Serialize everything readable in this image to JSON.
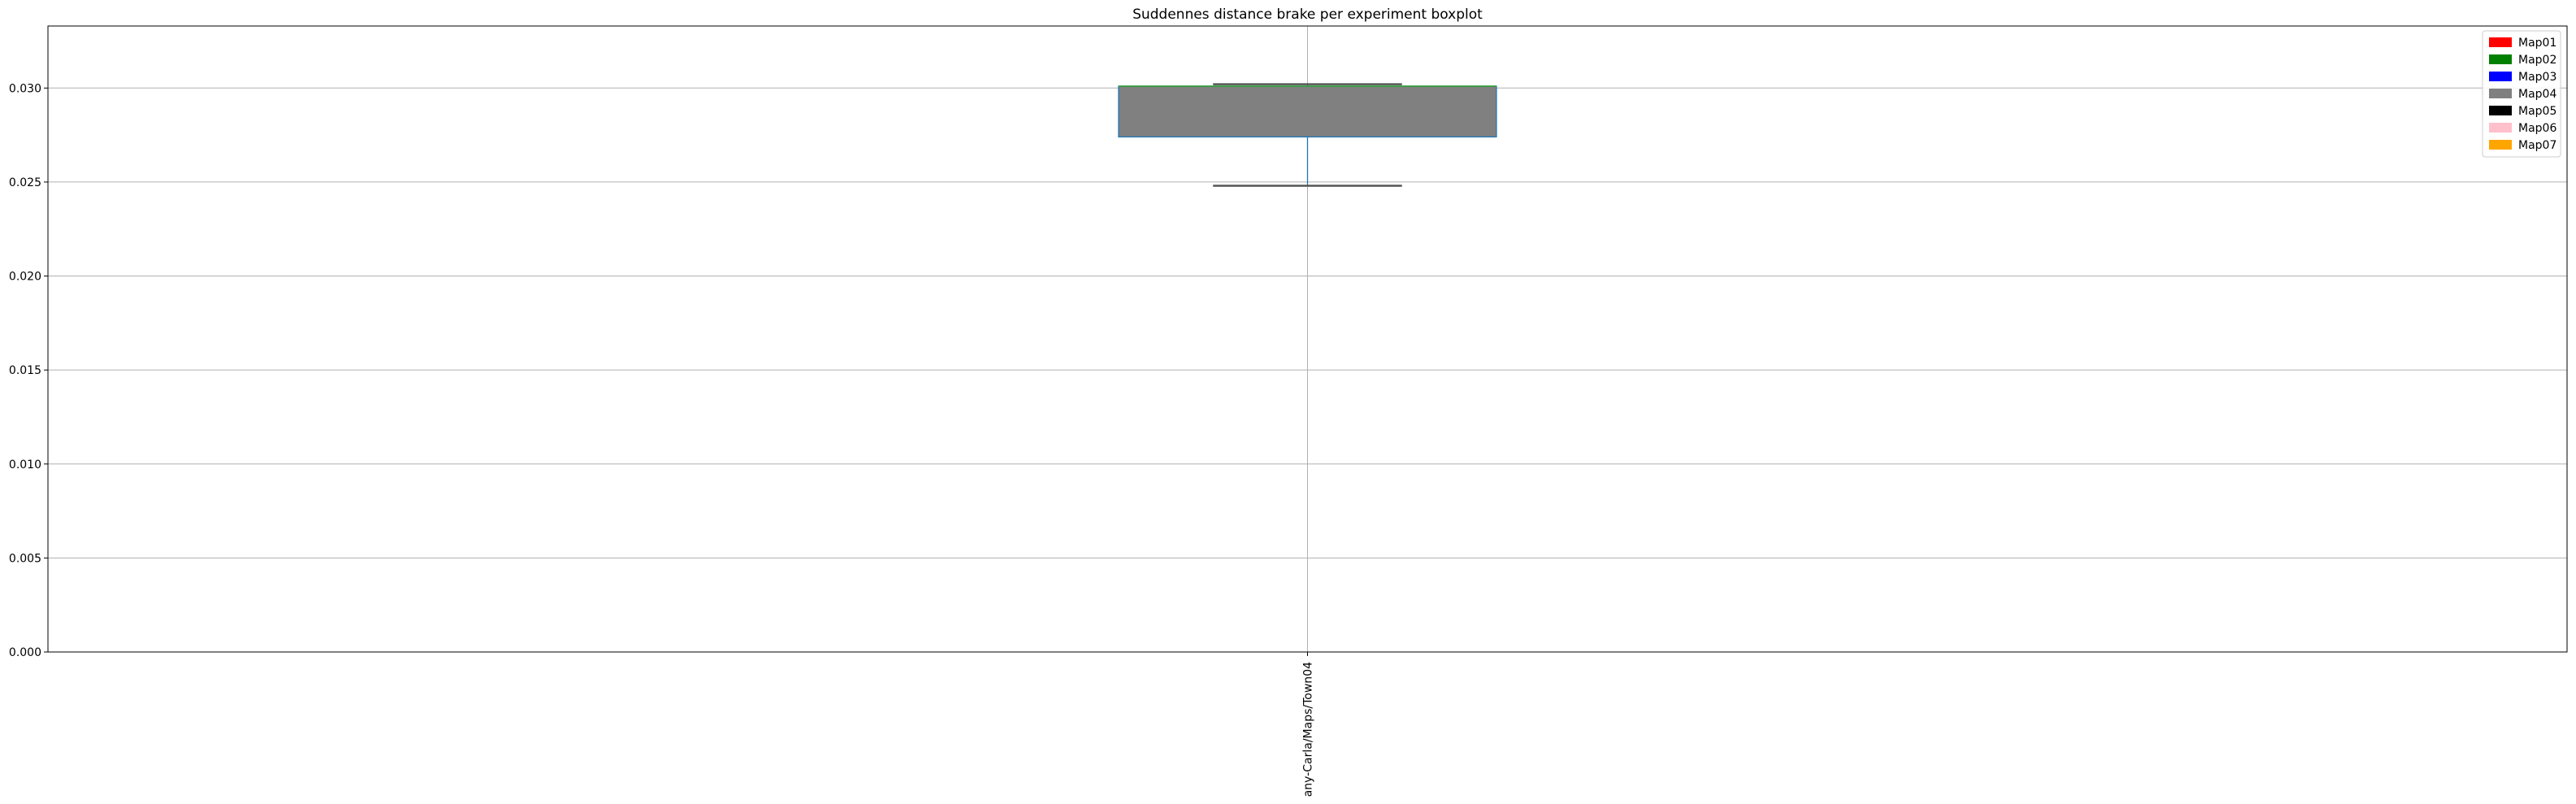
{
  "chart_data": {
    "type": "box",
    "title": "Suddennes distance brake per experiment boxplot",
    "xlabel": "",
    "ylabel": "",
    "categories": [
      "any-Carla/Maps/Town04"
    ],
    "ylim": [
      0,
      0.0333
    ],
    "yticks": [
      "0.000",
      "0.005",
      "0.010",
      "0.015",
      "0.020",
      "0.025",
      "0.030"
    ],
    "ytick_values": [
      0,
      0.005,
      0.01,
      0.015,
      0.02,
      0.025,
      0.03
    ],
    "grid": true,
    "boxes": [
      {
        "category": "any-Carla/Maps/Town04",
        "whisker_low": 0.0248,
        "q1": 0.0274,
        "median": 0.0301,
        "q3": 0.0301,
        "whisker_high": 0.0302,
        "color": "#808080"
      }
    ],
    "legend": {
      "position": "upper right",
      "entries": [
        {
          "label": "Map01",
          "color": "#ff0000"
        },
        {
          "label": "Map02",
          "color": "#008000"
        },
        {
          "label": "Map03",
          "color": "#0000ff"
        },
        {
          "label": "Map04",
          "color": "#808080"
        },
        {
          "label": "Map05",
          "color": "#000000"
        },
        {
          "label": "Map06",
          "color": "#ffc0cb"
        },
        {
          "label": "Map07",
          "color": "#ffa500"
        }
      ]
    },
    "colors": {
      "box_edge": "#1f77b4",
      "median": "#2ca02c",
      "grid": "#b0b0b0",
      "axes": "#000000"
    }
  }
}
